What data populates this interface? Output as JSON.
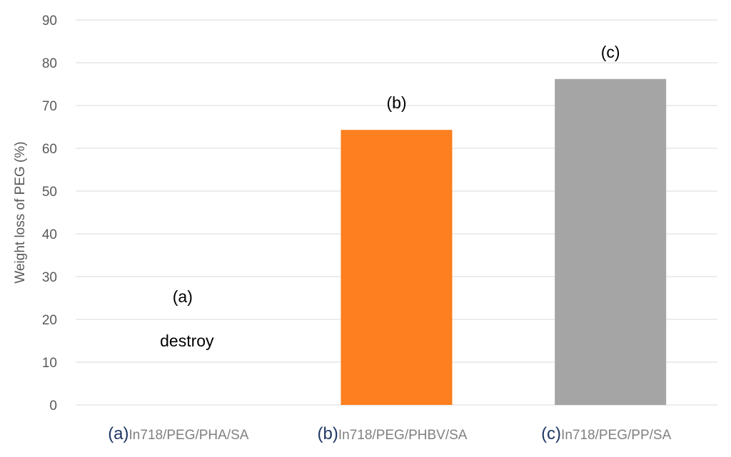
{
  "chart_data": {
    "type": "bar",
    "title": "",
    "xlabel": "",
    "ylabel": "Weight loss of PEG (%)",
    "ylim": [
      0,
      90
    ],
    "yticks": [
      0,
      10,
      20,
      30,
      40,
      50,
      60,
      70,
      80,
      90
    ],
    "grid": true,
    "legend": "none",
    "categories": [
      {
        "prefix": "(a)",
        "label": "In718/PEG/PHA/SA"
      },
      {
        "prefix": "(b)",
        "label": "In718/PEG/PHBV/SA"
      },
      {
        "prefix": "(c)",
        "label": "In718/PEG/PP/SA"
      }
    ],
    "values": [
      null,
      64.3,
      76.2
    ],
    "bar_colors": [
      "#ed7d31",
      "#fd7f20",
      "#a5a5a5"
    ],
    "bar_labels": [
      "(a)",
      "(b)",
      "(c)"
    ],
    "annotations": [
      {
        "text": "destroy",
        "category_index": 0,
        "y": 15
      }
    ],
    "colors": {
      "grid": "#d9d9d9",
      "axis_text": "#595959",
      "category_prefix": "#1f3864",
      "category_text": "#808080"
    }
  }
}
